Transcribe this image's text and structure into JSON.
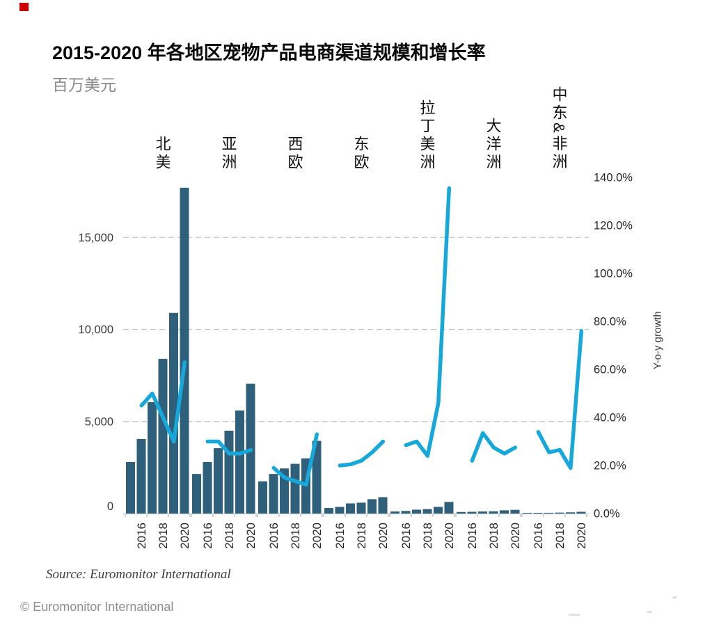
{
  "header": {
    "title": "2015-2020 年各地区宠物产品电商渠道规模和增长率",
    "subtitle": "百万美元"
  },
  "source_note": "Source: Euromonitor International",
  "footer_copyright": "© Euromonitor International",
  "colors": {
    "bar": "#2E5F7B",
    "line": "#17A8DB",
    "grid": "#C3C3C3",
    "axis_line": "#C9C9C9",
    "axis_tick": "#ABABAB",
    "left_axis_text": "#3A3A3A",
    "right_axis_text": "#262626",
    "x_tick_text": "#262626",
    "right_axis_title_text": "#333333",
    "red_mark": "#CC0000"
  },
  "chart_data": {
    "type": "combo_bar_line",
    "title": "2015-2020 年各地区宠物产品电商渠道规模和增长率",
    "unit_label": "百万美元",
    "years": [
      2015,
      2016,
      2017,
      2018,
      2019,
      2020
    ],
    "growth_years": [
      2016,
      2017,
      2018,
      2019,
      2020
    ],
    "x_tick_labels": [
      "2016",
      "2018",
      "2020"
    ],
    "left_axis": {
      "tick_labels": [
        "0",
        "5,000",
        "10,000",
        "15,000"
      ],
      "tick_values": [
        0,
        5000,
        10000,
        15000
      ],
      "range": [
        0,
        18300
      ],
      "gridlines": true
    },
    "right_axis": {
      "label": "Y-o-y growth",
      "tick_labels": [
        "0.0%",
        "20.0%",
        "40.0%",
        "60.0%",
        "80.0%",
        "100.0%",
        "120.0%",
        "140.0%"
      ],
      "tick_values": [
        0,
        20,
        40,
        60,
        80,
        100,
        120,
        140
      ],
      "range": [
        0,
        140
      ]
    },
    "regions": [
      {
        "name": "北美",
        "bar_values": [
          2800,
          4050,
          6050,
          8400,
          10900,
          17700
        ],
        "growth_pct": [
          45,
          50,
          40,
          30,
          63
        ]
      },
      {
        "name": "亚洲",
        "bar_values": [
          2150,
          2800,
          3550,
          4500,
          5600,
          7050
        ],
        "growth_pct": [
          30,
          30,
          25,
          25,
          26.5
        ]
      },
      {
        "name": "西欧",
        "bar_values": [
          1750,
          2150,
          2450,
          2700,
          3000,
          3950
        ],
        "growth_pct": [
          19,
          15,
          13.5,
          12,
          33
        ]
      },
      {
        "name": "东欧",
        "bar_values": [
          300,
          360,
          550,
          590,
          780,
          890
        ],
        "growth_pct": [
          20,
          20.5,
          22,
          25.5,
          30
        ]
      },
      {
        "name": "拉丁美洲",
        "bar_values": [
          110,
          140,
          210,
          240,
          360,
          630
        ],
        "growth_pct": [
          28.5,
          30,
          24,
          46,
          135.5
        ]
      },
      {
        "name": "大洋洲",
        "bar_values": [
          85,
          95,
          110,
          120,
          175,
          200
        ],
        "growth_pct": [
          22,
          33.5,
          27.5,
          25,
          27.5
        ]
      },
      {
        "name": "中东&非洲",
        "bar_values": [
          20,
          30,
          40,
          50,
          65,
          95
        ],
        "growth_pct": [
          34,
          25.5,
          26.5,
          19,
          76
        ]
      }
    ]
  }
}
